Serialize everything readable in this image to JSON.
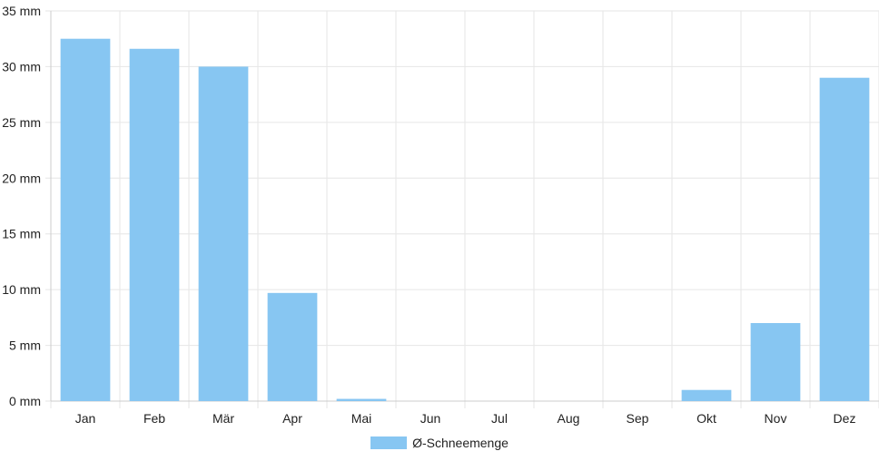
{
  "chart_data": {
    "type": "bar",
    "categories": [
      "Jan",
      "Feb",
      "Mär",
      "Apr",
      "Mai",
      "Jun",
      "Jul",
      "Aug",
      "Sep",
      "Okt",
      "Nov",
      "Dez"
    ],
    "series": [
      {
        "name": "Ø-Schneemenge",
        "values": [
          32.5,
          31.6,
          30.0,
          9.7,
          0.2,
          0,
          0,
          0,
          0,
          1.0,
          7.0,
          29.0
        ]
      }
    ],
    "y_ticks": [
      0,
      5,
      10,
      15,
      20,
      25,
      30,
      35
    ],
    "y_tick_labels": [
      "0 mm",
      "5 mm",
      "10 mm",
      "15 mm",
      "20 mm",
      "25 mm",
      "30 mm",
      "35 mm"
    ],
    "ylim": [
      0,
      35
    ],
    "unit": "mm",
    "grid": true,
    "legend_position": "bottom",
    "colors": {
      "bar": "#87c6f2",
      "grid": "#e6e6e6",
      "axis": "#cccccc"
    }
  }
}
